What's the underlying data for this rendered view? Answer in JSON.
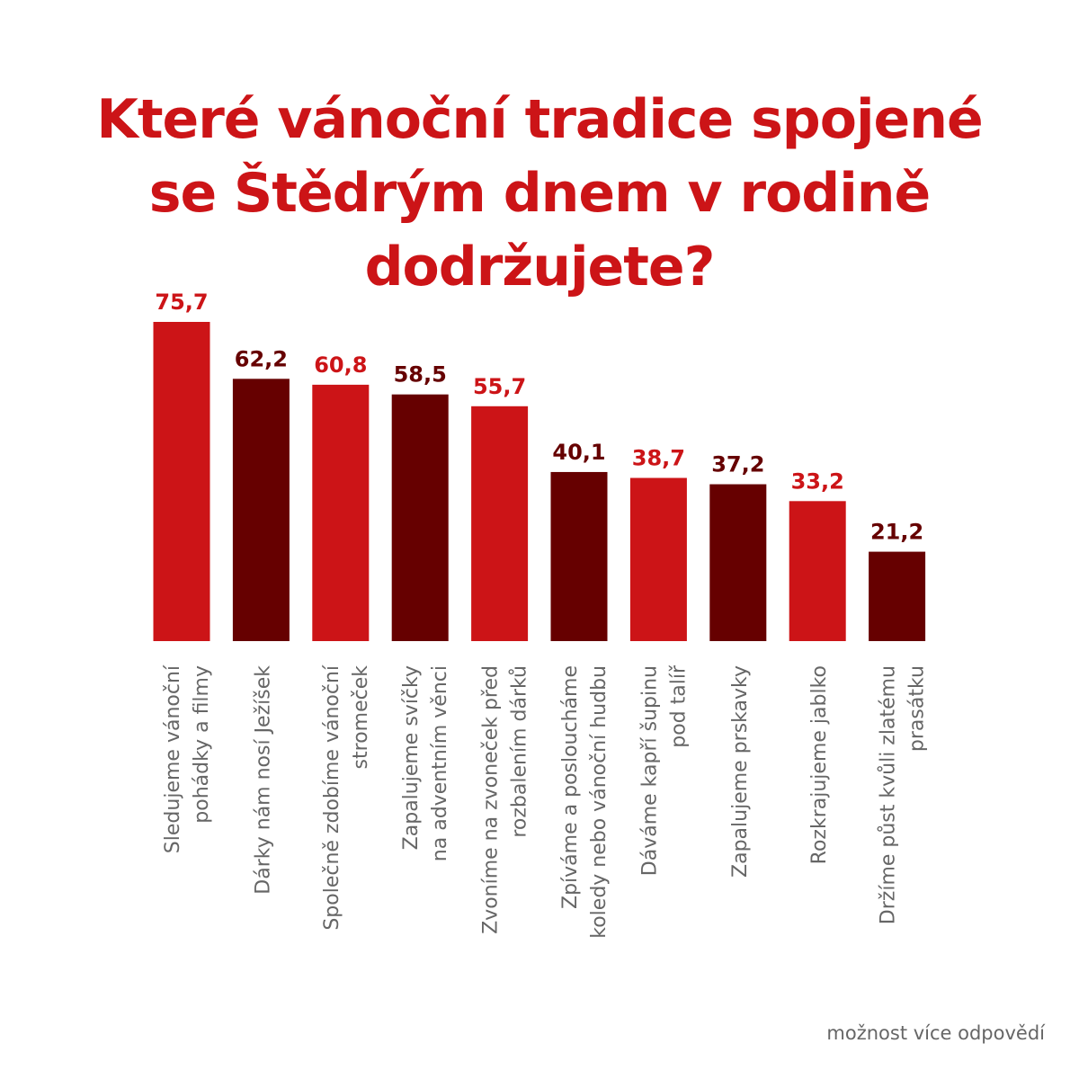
{
  "chart_data": {
    "type": "bar",
    "title_lines": [
      "Které vánoční tradice spojené",
      "se Štědrým dnem v rodině",
      "dodržujete?"
    ],
    "categories": [
      [
        "Sledujeme vánoční",
        "pohádky a filmy"
      ],
      [
        "Dárky nám nosí Ježíšek"
      ],
      [
        "Společně zdobíme vánoční",
        "stromeček"
      ],
      [
        "Zapalujeme svíčky",
        "na adventním věnci"
      ],
      [
        "Zvoníme na zvoneček před",
        "rozbalením dárků"
      ],
      [
        "Zpíváme a posloucháme",
        "koledy nebo vánoční hudbu"
      ],
      [
        "Dáváme kapří šupinu",
        "pod talíř"
      ],
      [
        "Zapalujeme prskavky"
      ],
      [
        "Rozkrajujeme jablko"
      ],
      [
        "Držíme půst kvůli zlatému",
        "prasátku"
      ]
    ],
    "values": [
      75.7,
      62.2,
      60.8,
      58.5,
      55.7,
      40.1,
      38.7,
      37.2,
      33.2,
      21.2
    ],
    "value_labels": [
      "75,7",
      "62,2",
      "60,8",
      "58,5",
      "55,7",
      "40,1",
      "38,7",
      "37,2",
      "33,2",
      "21,2"
    ],
    "ylim": [
      0,
      100
    ],
    "grid": false,
    "legend": "none",
    "colors": [
      "#cc1417",
      "#660000"
    ],
    "footnote": "možnost více odpovědí"
  }
}
